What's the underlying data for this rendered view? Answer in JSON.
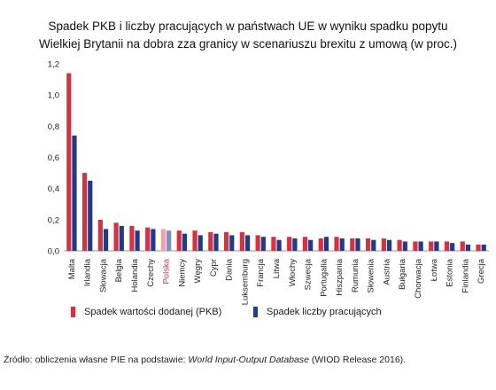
{
  "chart_data": {
    "type": "bar",
    "title_line1": "Spadek PKB i liczby pracujących w państwach UE w wyniku spadku popytu",
    "title_line2": "Wielkiej Brytanii na dobra zza granicy w scenariuszu brexitu z umową (w proc.)",
    "categories": [
      "Malta",
      "Irlandia",
      "Słowacja",
      "Belgia",
      "Holandia",
      "Czechy",
      "Polska",
      "Niemcy",
      "Węgry",
      "Cypr",
      "Dania",
      "Luksemburg",
      "Francja",
      "Litwa",
      "Włochy",
      "Szwecja",
      "Portugalia",
      "Hiszpania",
      "Rumunia",
      "Słowenia",
      "Austria",
      "Bułgaria",
      "Chorwacja",
      "Łotwa",
      "Estonia",
      "Finlandia",
      "Grecja"
    ],
    "highlight_category": "Polska",
    "series": [
      {
        "name": "Spadek wartości dodanej (PKB)",
        "color": "#d9303c",
        "highlight_color": "#f0a4aa",
        "values": [
          1.14,
          0.5,
          0.2,
          0.18,
          0.16,
          0.15,
          0.14,
          0.13,
          0.13,
          0.12,
          0.12,
          0.12,
          0.1,
          0.09,
          0.09,
          0.09,
          0.08,
          0.09,
          0.08,
          0.08,
          0.08,
          0.07,
          0.06,
          0.06,
          0.06,
          0.06,
          0.04
        ]
      },
      {
        "name": "Spadek liczby pracujących",
        "color": "#1f3a93",
        "highlight_color": "#7f8fc2",
        "values": [
          0.74,
          0.45,
          0.14,
          0.16,
          0.13,
          0.14,
          0.13,
          0.11,
          0.1,
          0.11,
          0.1,
          0.1,
          0.09,
          0.07,
          0.08,
          0.07,
          0.09,
          0.08,
          0.08,
          0.07,
          0.07,
          0.06,
          0.06,
          0.06,
          0.05,
          0.04,
          0.04
        ]
      }
    ],
    "ylim": [
      0,
      1.2
    ],
    "yticks": [
      "0,0",
      "0,2",
      "0,4",
      "0,6",
      "0,8",
      "1,0",
      "1,2"
    ],
    "grid": false
  },
  "legend": {
    "item1": "Spadek wartości dodanej (PKB)",
    "item2": "Spadek liczby pracujących"
  },
  "source": {
    "prefix": "Źródło: obliczenia własne PIE na podstawie: ",
    "italic": "World Input-Output Database",
    "suffix": " (WIOD Release 2016)."
  }
}
